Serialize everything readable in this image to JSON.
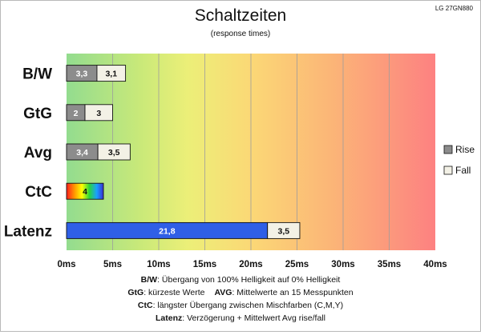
{
  "chart_data": {
    "type": "bar",
    "orientation": "horizontal",
    "stacked": true,
    "title": "Schaltzeiten",
    "subtitle": "(response times)",
    "model": "LG 27GN880",
    "categories": [
      "B/W",
      "GtG",
      "Avg",
      "CtC",
      "Latenz"
    ],
    "series": [
      {
        "name": "Rise",
        "color": "#8c8c8c",
        "values": [
          3.3,
          2,
          3.4,
          4,
          21.8
        ],
        "labels": [
          "3,3",
          "2",
          "3,4",
          "4",
          "21,8"
        ]
      },
      {
        "name": "Fall",
        "color": "#f3f1e6",
        "values": [
          3.1,
          3,
          3.5,
          null,
          3.5
        ],
        "labels": [
          "3,1",
          "3",
          "3,5",
          "",
          "3,5"
        ]
      }
    ],
    "special_bar_colors": {
      "CtC": "rainbow",
      "Latenz": "#2f5fe6"
    },
    "xlim": [
      0,
      40
    ],
    "x_ticks": [
      "0ms",
      "5ms",
      "10ms",
      "15ms",
      "20ms",
      "25ms",
      "30ms",
      "35ms",
      "40ms"
    ],
    "background": "gradient green-yellow-orange-red",
    "grid": true,
    "legend_position": "right",
    "notes": [
      {
        "key": "B/W",
        "text": ": Übergang von 100% Helligkeit auf 0% Helligkeit"
      },
      {
        "key": "GtG",
        "text": ": kürzeste Werte",
        "key2": "AVG",
        "text2": ": Mittelwerte an 15 Messpunkten"
      },
      {
        "key": "CtC",
        "text": ": längster Übergang zwischen Mischfarben (C,M,Y)"
      },
      {
        "key": "Latenz",
        "text": ": Verzögerung + Mittelwert Avg rise/fall"
      }
    ]
  }
}
